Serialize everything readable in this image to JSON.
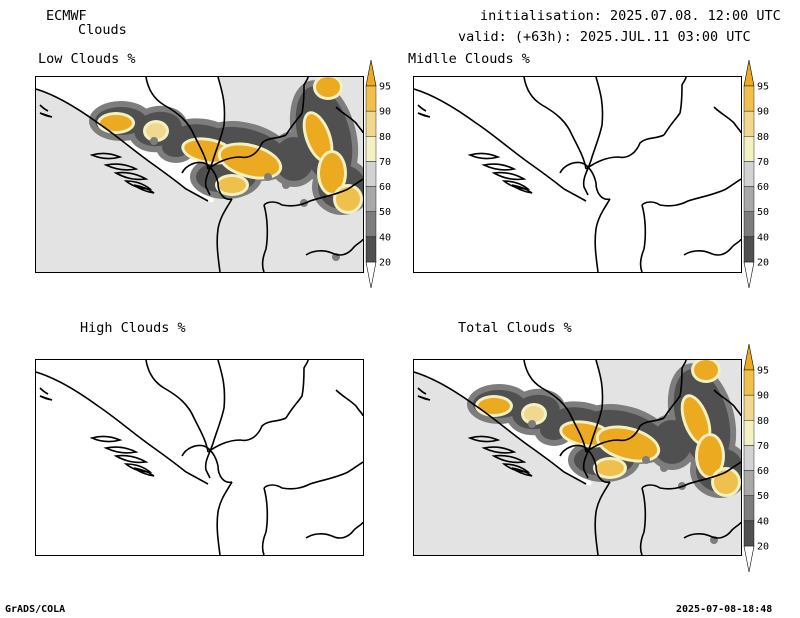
{
  "header": {
    "model": "ECMWF",
    "product": "Clouds",
    "initialisation": "initialisation: 2025.07.08. 12:00 UTC",
    "valid": "valid: (+63h): 2025.JUL.11 03:00 UTC"
  },
  "panels": [
    {
      "id": "low",
      "title": "Low Clouds %",
      "cover": "widespread"
    },
    {
      "id": "middle",
      "title": "Midlle Clouds %",
      "cover": "none"
    },
    {
      "id": "high",
      "title": "High Clouds %",
      "cover": "none"
    },
    {
      "id": "total",
      "title": "Total Clouds %",
      "cover": "widespread"
    }
  ],
  "legend": {
    "levels": [
      "20",
      "40",
      "50",
      "60",
      "70",
      "80",
      "90",
      "95"
    ],
    "colors": [
      "#ffffff",
      "#505050",
      "#7d7d7d",
      "#a8a8a8",
      "#d2d2d2",
      "#f3f0c2",
      "#f0d890",
      "#f0c04c",
      "#ecaa20"
    ]
  },
  "palette": {
    "land": "#e3e3e3",
    "white": "#ffffff"
  },
  "footer": {
    "left": "GrADS/COLA",
    "right": "2025-07-08-18:48"
  }
}
